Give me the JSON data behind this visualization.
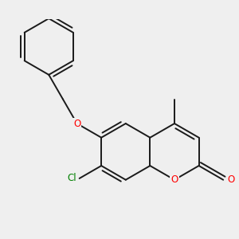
{
  "bg_color": "#efefef",
  "bond_color": "#1a1a1a",
  "bond_width": 1.4,
  "dbo": 0.055,
  "atom_colors": {
    "O": "#ff0000",
    "Cl": "#008000",
    "C": "#1a1a1a"
  },
  "font_size_atom": 8.5,
  "font_size_methyl": 7.5,
  "bl": 0.42
}
